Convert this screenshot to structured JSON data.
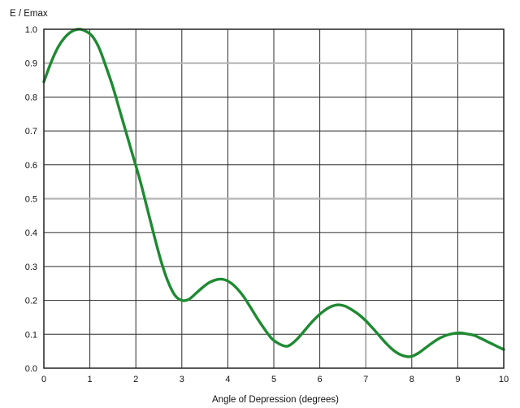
{
  "chart_data": {
    "type": "line",
    "title": "",
    "ylabel": "E / Emax",
    "xlabel": "Angle of Depression (degrees)",
    "xlim": [
      0,
      10
    ],
    "ylim": [
      0,
      1.0
    ],
    "grid": true,
    "x_ticks": [
      "0",
      "1",
      "2",
      "3",
      "4",
      "5",
      "6",
      "7",
      "8",
      "9",
      "10"
    ],
    "y_ticks": [
      "0.0",
      "0.1",
      "0.2",
      "0.3",
      "0.4",
      "0.5",
      "0.6",
      "0.7",
      "0.8",
      "0.9",
      "1.0"
    ],
    "highlighted_gridlines": {
      "x": [
        7
      ],
      "y": [
        0.5,
        0.9
      ]
    },
    "colors": {
      "line": "#1e8a32",
      "grid": "#2b2b2b",
      "highlight_grid": "#b5b5b5",
      "frame": "#222222"
    },
    "series": [
      {
        "x": [
          0,
          0.15,
          0.3,
          0.45,
          0.6,
          0.75,
          0.9,
          1.05,
          1.2,
          1.35,
          1.5,
          1.65,
          1.8,
          1.95,
          2.1,
          2.25,
          2.4,
          2.55,
          2.7,
          2.85,
          3.0,
          3.15,
          3.3,
          3.45,
          3.6,
          3.75,
          3.9,
          4.05,
          4.2,
          4.35,
          4.5,
          4.65,
          4.8,
          4.95,
          5.1,
          5.25,
          5.35,
          5.5,
          5.65,
          5.8,
          5.95,
          6.1,
          6.25,
          6.4,
          6.55,
          6.7,
          6.85,
          7.0,
          7.15,
          7.3,
          7.45,
          7.6,
          7.75,
          7.9,
          8.0,
          8.15,
          8.3,
          8.45,
          8.6,
          8.75,
          8.9,
          9.05,
          9.2,
          9.35,
          9.5,
          9.65,
          9.8,
          10.0
        ],
        "y": [
          0.845,
          0.9,
          0.945,
          0.975,
          0.993,
          1.0,
          0.995,
          0.98,
          0.945,
          0.89,
          0.83,
          0.76,
          0.69,
          0.62,
          0.55,
          0.47,
          0.39,
          0.315,
          0.255,
          0.215,
          0.2,
          0.203,
          0.22,
          0.238,
          0.253,
          0.261,
          0.262,
          0.253,
          0.235,
          0.21,
          0.178,
          0.145,
          0.115,
          0.088,
          0.073,
          0.065,
          0.068,
          0.085,
          0.108,
          0.132,
          0.153,
          0.17,
          0.182,
          0.187,
          0.183,
          0.172,
          0.158,
          0.14,
          0.118,
          0.095,
          0.072,
          0.053,
          0.04,
          0.034,
          0.035,
          0.045,
          0.06,
          0.075,
          0.088,
          0.097,
          0.102,
          0.104,
          0.101,
          0.097,
          0.088,
          0.078,
          0.068,
          0.055
        ]
      }
    ]
  }
}
